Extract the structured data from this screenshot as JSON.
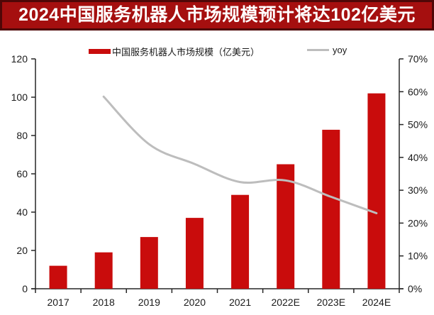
{
  "title": "2024中国服务机器人市场规模预计将达102亿美元",
  "colors": {
    "banner_background": "#a50f0f",
    "banner_border": "#4f0707",
    "banner_text": "#ffffff",
    "bar_red": "#c90c0c",
    "line_gray": "#bdbdbd",
    "axis": "#262626",
    "label_text": "#1a1a1a",
    "page_background": "#ffffff"
  },
  "chart_data": {
    "type": "bar+line",
    "title": "2024中国服务机器人市场规模预计将达102亿美元",
    "categories": [
      "2017",
      "2018",
      "2019",
      "2020",
      "2021",
      "2022E",
      "2023E",
      "2024E"
    ],
    "series": [
      {
        "name": "中国服务机器人市场规模（亿美元）",
        "type": "bar",
        "axis": "left",
        "color": "#c90c0c",
        "values": [
          12,
          19,
          27,
          37,
          49,
          65,
          83,
          102
        ]
      },
      {
        "name": "yoy",
        "type": "line",
        "axis": "right",
        "color": "#bdbdbd",
        "unit": "%",
        "values": [
          null,
          58.5,
          44,
          38,
          32.5,
          33,
          28,
          23
        ]
      }
    ],
    "left_axis": {
      "min": 0,
      "max": 120,
      "tick_labels": [
        "0",
        "20",
        "40",
        "60",
        "80",
        "100",
        "120"
      ]
    },
    "right_axis": {
      "min": 0,
      "max": 70,
      "tick_labels": [
        "0%",
        "10%",
        "20%",
        "30%",
        "40%",
        "50%",
        "60%",
        "70%"
      ]
    },
    "legend_position": "top",
    "grid": false
  }
}
